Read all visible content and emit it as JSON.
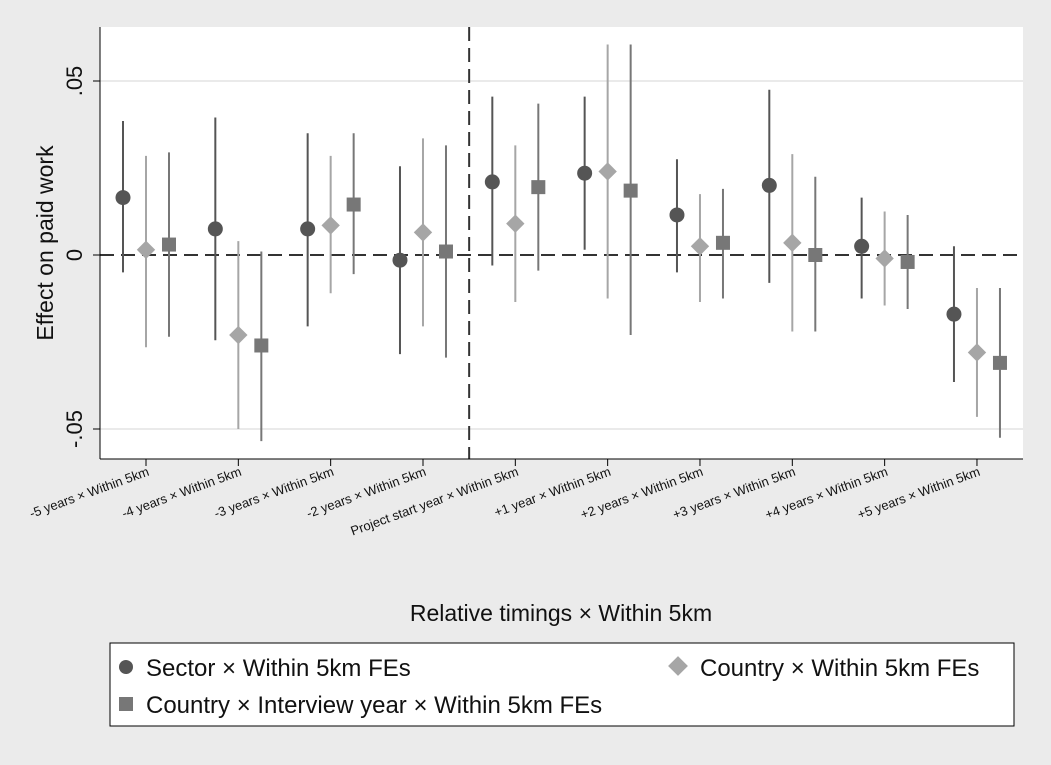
{
  "chart_data": {
    "type": "scatter",
    "subtype": "coefficient-plot-with-confidence-intervals",
    "title": "",
    "xlabel": "Relative timings × Within 5km",
    "ylabel": "Effect on paid work",
    "ylim": [
      -0.058,
      0.065
    ],
    "yticks": [
      0.05,
      0,
      -0.05
    ],
    "ytick_labels": [
      ".05",
      "0",
      "-.05"
    ],
    "grid": true,
    "reference_lines": {
      "horizontal_at": 0,
      "vertical_between_categories": [
        3,
        4
      ],
      "style": "dashed"
    },
    "categories": [
      "-5 years × Within 5km",
      "-4 years × Within 5km",
      "-3 years × Within 5km",
      "-2 years × Within 5km",
      "Project start year × Within 5km",
      "+1 year × Within 5km",
      "+2 years × Within 5km",
      "+3 years × Within 5km",
      "+4 years × Within 5km",
      "+5 years × Within 5km"
    ],
    "series": [
      {
        "name": "Sector × Within 5km FEs",
        "marker": "circle",
        "color": "#555555",
        "ci_color": "#555555",
        "values": [
          0.0165,
          0.0075,
          0.0075,
          -0.0015,
          0.021,
          0.0235,
          0.0115,
          0.02,
          0.0025,
          -0.017
        ],
        "ci_low": [
          -0.005,
          -0.0245,
          -0.0205,
          -0.0285,
          -0.003,
          0.0015,
          -0.005,
          -0.008,
          -0.0125,
          -0.0365
        ],
        "ci_high": [
          0.0385,
          0.0395,
          0.035,
          0.0255,
          0.0455,
          0.0455,
          0.0275,
          0.0475,
          0.0165,
          0.0025
        ]
      },
      {
        "name": "Country × Within 5km FEs",
        "marker": "diamond",
        "color": "#a6a6a6",
        "ci_color": "#a6a6a6",
        "values": [
          0.0015,
          -0.023,
          0.0085,
          0.0065,
          0.009,
          0.024,
          0.0025,
          0.0035,
          -0.001,
          -0.028
        ],
        "ci_low": [
          -0.0265,
          -0.05,
          -0.011,
          -0.0205,
          -0.0135,
          -0.0125,
          -0.0135,
          -0.022,
          -0.0145,
          -0.0465
        ],
        "ci_high": [
          0.0285,
          0.004,
          0.0285,
          0.0335,
          0.0315,
          0.0605,
          0.0175,
          0.029,
          0.0125,
          -0.0095
        ]
      },
      {
        "name": "Country × Interview year × Within 5km FEs",
        "marker": "square",
        "color": "#777777",
        "ci_color": "#777777",
        "values": [
          0.003,
          -0.026,
          0.0145,
          0.001,
          0.0195,
          0.0185,
          0.0035,
          0.0,
          -0.002,
          -0.031
        ],
        "ci_low": [
          -0.0235,
          -0.0535,
          -0.0055,
          -0.0295,
          -0.0045,
          -0.023,
          -0.0125,
          -0.022,
          -0.0155,
          -0.0525
        ],
        "ci_high": [
          0.0295,
          0.001,
          0.035,
          0.0315,
          0.0435,
          0.0605,
          0.019,
          0.0225,
          0.0115,
          -0.0095
        ]
      }
    ],
    "legend": {
      "placement": "bottom",
      "columns": 2,
      "order": [
        0,
        1,
        2
      ]
    }
  }
}
